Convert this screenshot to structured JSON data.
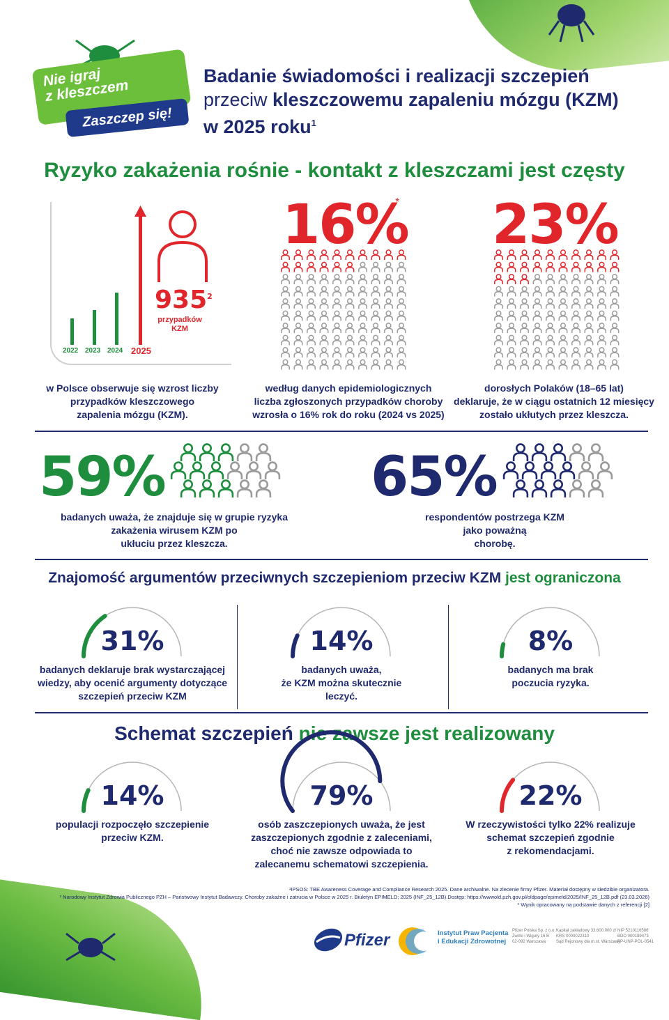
{
  "logo": {
    "line1": "Nie igraj",
    "line2": "z kleszczem",
    "cta": "Zaszczep się!"
  },
  "title": {
    "line1": "Badanie świadomości i realizacji szczepień",
    "line2_a": "przeciw ",
    "line2_b": "kleszczowemu zapaleniu mózgu (KZM)",
    "line3": "w 2025 roku",
    "ref": "1"
  },
  "section1": {
    "heading": "Ryzyko zakażenia rośnie - kontakt z kleszczami jest częsty"
  },
  "chart_data": {
    "type": "bar",
    "categories": [
      "2022",
      "2023",
      "2024",
      "2025"
    ],
    "values": [
      38,
      50,
      75,
      120
    ],
    "count": "935",
    "count_ref": "2",
    "count_label_1": "przypadków",
    "count_label_2": "KZM",
    "colors": {
      "past": "#1e8e3e",
      "current": "#e0262b"
    }
  },
  "stat1": {
    "caption_1": "w Polsce obserwuje się wzrost liczby",
    "caption_2": "przypadków kleszczowego",
    "caption_3": "zapalenia mózgu (KZM)."
  },
  "stat2": {
    "value": "16%",
    "mark": "*",
    "filled": 16,
    "caption_1": "według danych epidemiologicznych",
    "caption_2": "liczba zgłoszonych przypadków choroby",
    "caption_3": "wzrosła o 16% rok do roku (2024 vs 2025)"
  },
  "stat3": {
    "value": "23%",
    "filled": 23,
    "caption_1": "dorosłych Polaków (18–65 lat)",
    "caption_2": "deklaruje, że w ciągu ostatnich 12 miesięcy",
    "caption_3": "zostało ukłutych przez kleszcza."
  },
  "stat4": {
    "value": "59%",
    "filled": 59,
    "caption_1": "badanych uważa, że znajduje się w grupie ryzyka",
    "caption_2": "zakażenia wirusem KZM po",
    "caption_3": "ukłuciu przez kleszcza."
  },
  "stat5": {
    "value": "65%",
    "filled": 65,
    "caption_1": "respondentów postrzega KZM",
    "caption_2": "jako poważną",
    "caption_3": "chorobę."
  },
  "section2": {
    "heading_a": "Znajomość argumentów przeciwnych szczepieniom przeciw KZM ",
    "heading_b": "jest ograniczona"
  },
  "gauges1": [
    {
      "value": "31%",
      "fraction": 0.31,
      "color": "#1e8e3e",
      "caption_1": "badanych deklaruje brak wystarczającej",
      "caption_2": "wiedzy, aby ocenić argumenty dotyczące",
      "caption_3": "szczepień przeciw KZM"
    },
    {
      "value": "14%",
      "fraction": 0.14,
      "color": "#1f2a6e",
      "caption_1": "badanych uważa,",
      "caption_2": "że KZM można skutecznie",
      "caption_3": "leczyć."
    },
    {
      "value": "8%",
      "fraction": 0.08,
      "color": "#1e8e3e",
      "caption_1": "badanych ma brak",
      "caption_2": "poczucia ryzyka.",
      "caption_3": ""
    }
  ],
  "section3": {
    "heading_a": "Schemat szczepień ",
    "heading_b": "nie zawsze jest realizowany"
  },
  "gauges2": [
    {
      "value": "14%",
      "fraction": 0.14,
      "color": "#1e8e3e",
      "caption_1": "populacji rozpoczęło szczepienie",
      "caption_2": "przeciw KZM.",
      "caption_3": "",
      "caption_4": ""
    },
    {
      "value": "79%",
      "fraction": 0.79,
      "color": "#1f2a6e",
      "caption_1": "osób zaszczepionych uważa, że jest",
      "caption_2": "zaszczepionych zgodnie z zaleceniami,",
      "caption_3": "choć nie zawsze odpowiada to",
      "caption_4": "zalecanemu schematowi szczepienia."
    },
    {
      "value": "22%",
      "fraction": 0.22,
      "color": "#e0262b",
      "caption_1": "W rzeczywistości tylko 22% realizuje",
      "caption_2": "schemat szczepień zgodnie",
      "caption_3": "z rekomendacjami.",
      "caption_4": ""
    }
  ],
  "footnotes": {
    "f1": "¹IPSOS: TBE Awareness Coverage and Compliance Research 2025. Dane archiwalne. Na zlecenie firmy Pfizer. Materiał dostępny w siedzibie organizatora.",
    "f2": "² Narodowy Instytut Zdrowia Publicznego PZH – Państwowy Instytut Badawczy. Choroby zakaźne i zatrucia w Polsce w 2025 r. Biuletyn EPIMELD; 2025 (INF_25_12B).Dostęp: https://wwwold.pzh.gov.pl/oldpage/epimeld/2025/INF_25_12B.pdf (23.03.2026)",
    "f3": "* Wynik opracowany na podstawie danych z referencji [2]"
  },
  "brand": {
    "pfizer": "Pfizer",
    "ippez_1": "Instytut Praw Pacjenta",
    "ippez_2": "i Edukacji Zdrowotnej"
  },
  "legal": {
    "c1_1": "Pfizer Polska Sp. z o.o.",
    "c1_2": "Żwirki i Wigury 16 B",
    "c1_3": "02-092 Warszawa",
    "c2_1": "Kapitał zakładowy 33.600.000 zł",
    "c2_2": "KRS 0000022310",
    "c2_3": "Sąd Rejonowy dla m.st. Warszawy",
    "c3_1": "NIP 5210116586",
    "c3_2": "BDO 000189473",
    "c3_3": "PP-UNP-POL-0541"
  },
  "colors": {
    "navy": "#1f2a6e",
    "green": "#1e8e3e",
    "red": "#e0262b",
    "gray": "#9a9a9a"
  }
}
